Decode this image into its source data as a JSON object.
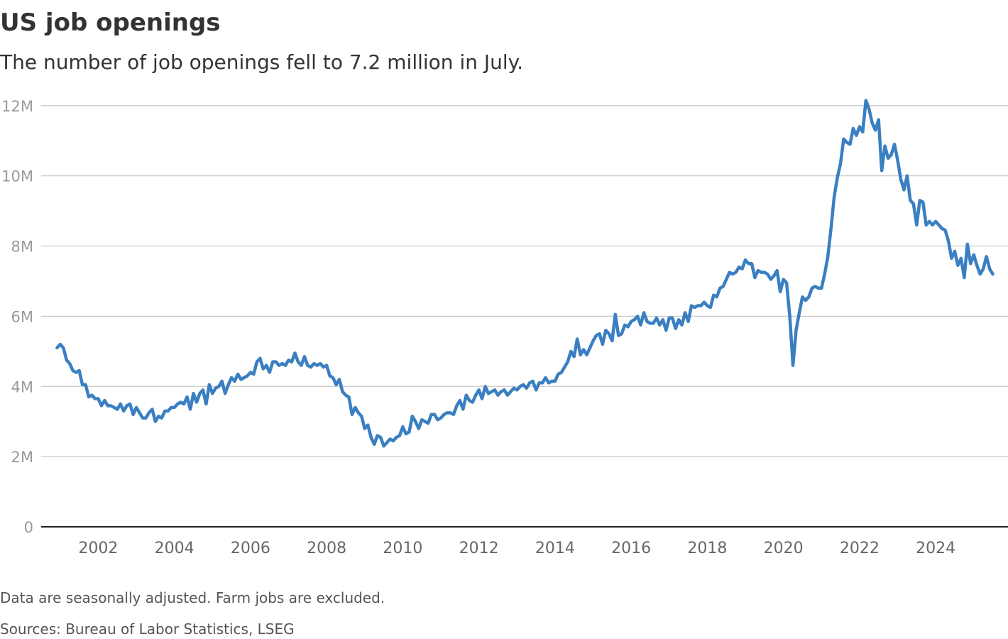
{
  "chart_data": {
    "type": "line",
    "title": "US job openings",
    "subtitle": "The number of job openings fell to 7.2 million in July.",
    "notes": [
      "Data are seasonally adjusted. Farm jobs are excluded.",
      "Sources: Bureau of Labor Statistics, LSEG"
    ],
    "color": "#3a7fc1",
    "grid": true,
    "xlim": [
      2000.5,
      2025.9
    ],
    "xticks": [
      2002,
      2004,
      2006,
      2008,
      2010,
      2012,
      2014,
      2016,
      2018,
      2020,
      2022,
      2024
    ],
    "ylim": [
      0,
      12.4
    ],
    "yticks": [
      0,
      {
        "value": 2,
        "label": "2M"
      },
      {
        "value": 4,
        "label": "4M"
      },
      {
        "value": 6,
        "label": "6M"
      },
      {
        "value": 8,
        "label": "8M"
      },
      {
        "value": 10,
        "label": "10M"
      },
      {
        "value": 12,
        "label": "12M"
      }
    ],
    "x": [
      2000.917,
      2001,
      2001.083,
      2001.167,
      2001.25,
      2001.333,
      2001.417,
      2001.5,
      2001.583,
      2001.667,
      2001.75,
      2001.833,
      2001.917,
      2002,
      2002.083,
      2002.167,
      2002.25,
      2002.333,
      2002.417,
      2002.5,
      2002.583,
      2002.667,
      2002.75,
      2002.833,
      2002.917,
      2003,
      2003.083,
      2003.167,
      2003.25,
      2003.333,
      2003.417,
      2003.5,
      2003.583,
      2003.667,
      2003.75,
      2003.833,
      2003.917,
      2004,
      2004.083,
      2004.167,
      2004.25,
      2004.333,
      2004.417,
      2004.5,
      2004.583,
      2004.667,
      2004.75,
      2004.833,
      2004.917,
      2005,
      2005.083,
      2005.167,
      2005.25,
      2005.333,
      2005.417,
      2005.5,
      2005.583,
      2005.667,
      2005.75,
      2005.833,
      2005.917,
      2006,
      2006.083,
      2006.167,
      2006.25,
      2006.333,
      2006.417,
      2006.5,
      2006.583,
      2006.667,
      2006.75,
      2006.833,
      2006.917,
      2007,
      2007.083,
      2007.167,
      2007.25,
      2007.333,
      2007.417,
      2007.5,
      2007.583,
      2007.667,
      2007.75,
      2007.833,
      2007.917,
      2008,
      2008.083,
      2008.167,
      2008.25,
      2008.333,
      2008.417,
      2008.5,
      2008.583,
      2008.667,
      2008.75,
      2008.833,
      2008.917,
      2009,
      2009.083,
      2009.167,
      2009.25,
      2009.333,
      2009.417,
      2009.5,
      2009.583,
      2009.667,
      2009.75,
      2009.833,
      2009.917,
      2010,
      2010.083,
      2010.167,
      2010.25,
      2010.333,
      2010.417,
      2010.5,
      2010.583,
      2010.667,
      2010.75,
      2010.833,
      2010.917,
      2011,
      2011.083,
      2011.167,
      2011.25,
      2011.333,
      2011.417,
      2011.5,
      2011.583,
      2011.667,
      2011.75,
      2011.833,
      2011.917,
      2012,
      2012.083,
      2012.167,
      2012.25,
      2012.333,
      2012.417,
      2012.5,
      2012.583,
      2012.667,
      2012.75,
      2012.833,
      2012.917,
      2013,
      2013.083,
      2013.167,
      2013.25,
      2013.333,
      2013.417,
      2013.5,
      2013.583,
      2013.667,
      2013.75,
      2013.833,
      2013.917,
      2014,
      2014.083,
      2014.167,
      2014.25,
      2014.333,
      2014.417,
      2014.5,
      2014.583,
      2014.667,
      2014.75,
      2014.833,
      2014.917,
      2015,
      2015.083,
      2015.167,
      2015.25,
      2015.333,
      2015.417,
      2015.5,
      2015.583,
      2015.667,
      2015.75,
      2015.833,
      2015.917,
      2016,
      2016.083,
      2016.167,
      2016.25,
      2016.333,
      2016.417,
      2016.5,
      2016.583,
      2016.667,
      2016.75,
      2016.833,
      2016.917,
      2017,
      2017.083,
      2017.167,
      2017.25,
      2017.333,
      2017.417,
      2017.5,
      2017.583,
      2017.667,
      2017.75,
      2017.833,
      2017.917,
      2018,
      2018.083,
      2018.167,
      2018.25,
      2018.333,
      2018.417,
      2018.5,
      2018.583,
      2018.667,
      2018.75,
      2018.833,
      2018.917,
      2019,
      2019.083,
      2019.167,
      2019.25,
      2019.333,
      2019.417,
      2019.5,
      2019.583,
      2019.667,
      2019.75,
      2019.833,
      2019.917,
      2020,
      2020.083,
      2020.167,
      2020.25,
      2020.333,
      2020.417,
      2020.5,
      2020.583,
      2020.667,
      2020.75,
      2020.833,
      2020.917,
      2021,
      2021.083,
      2021.167,
      2021.25,
      2021.333,
      2021.417,
      2021.5,
      2021.583,
      2021.667,
      2021.75,
      2021.833,
      2021.917,
      2022,
      2022.083,
      2022.167,
      2022.25,
      2022.333,
      2022.417,
      2022.5,
      2022.583,
      2022.667,
      2022.75,
      2022.833,
      2022.917,
      2023,
      2023.083,
      2023.167,
      2023.25,
      2023.333,
      2023.417,
      2023.5,
      2023.583,
      2023.667,
      2023.75,
      2023.833,
      2023.917,
      2024,
      2024.083,
      2024.167,
      2024.25,
      2024.333,
      2024.417,
      2024.5,
      2024.583,
      2024.667,
      2024.75,
      2024.833,
      2024.917,
      2025,
      2025.083,
      2025.167,
      2025.25,
      2025.333,
      2025.417,
      2025.5
    ],
    "values": [
      5.1,
      5.2,
      5.1,
      4.75,
      4.65,
      4.45,
      4.4,
      4.45,
      4.05,
      4.05,
      3.7,
      3.75,
      3.65,
      3.65,
      3.45,
      3.6,
      3.45,
      3.45,
      3.4,
      3.35,
      3.5,
      3.3,
      3.45,
      3.5,
      3.2,
      3.4,
      3.25,
      3.1,
      3.1,
      3.25,
      3.35,
      3.0,
      3.15,
      3.1,
      3.3,
      3.3,
      3.4,
      3.4,
      3.5,
      3.55,
      3.5,
      3.7,
      3.35,
      3.8,
      3.55,
      3.8,
      3.9,
      3.5,
      4.05,
      3.8,
      3.95,
      4.0,
      4.15,
      3.8,
      4.05,
      4.25,
      4.15,
      4.35,
      4.2,
      4.25,
      4.3,
      4.4,
      4.35,
      4.7,
      4.8,
      4.5,
      4.6,
      4.4,
      4.7,
      4.7,
      4.6,
      4.65,
      4.6,
      4.75,
      4.7,
      4.95,
      4.7,
      4.6,
      4.85,
      4.6,
      4.55,
      4.65,
      4.6,
      4.65,
      4.55,
      4.6,
      4.3,
      4.25,
      4.05,
      4.2,
      3.85,
      3.75,
      3.7,
      3.2,
      3.4,
      3.25,
      3.15,
      2.8,
      2.9,
      2.55,
      2.35,
      2.6,
      2.55,
      2.3,
      2.4,
      2.5,
      2.45,
      2.55,
      2.6,
      2.85,
      2.65,
      2.7,
      3.15,
      3.0,
      2.8,
      3.05,
      3.0,
      2.95,
      3.2,
      3.2,
      3.05,
      3.1,
      3.2,
      3.25,
      3.25,
      3.2,
      3.45,
      3.6,
      3.35,
      3.75,
      3.6,
      3.55,
      3.75,
      3.9,
      3.65,
      4.0,
      3.8,
      3.85,
      3.9,
      3.75,
      3.85,
      3.9,
      3.75,
      3.85,
      3.95,
      3.9,
      4.0,
      4.05,
      3.95,
      4.1,
      4.15,
      3.9,
      4.1,
      4.1,
      4.25,
      4.1,
      4.15,
      4.15,
      4.35,
      4.4,
      4.55,
      4.7,
      5.0,
      4.85,
      5.35,
      4.9,
      5.05,
      4.9,
      5.1,
      5.3,
      5.45,
      5.5,
      5.2,
      5.6,
      5.5,
      5.3,
      6.05,
      5.45,
      5.5,
      5.75,
      5.7,
      5.85,
      5.9,
      6.0,
      5.75,
      6.1,
      5.85,
      5.8,
      5.8,
      5.95,
      5.75,
      5.9,
      5.6,
      5.95,
      5.95,
      5.65,
      5.9,
      5.75,
      6.1,
      5.85,
      6.3,
      6.25,
      6.3,
      6.3,
      6.4,
      6.3,
      6.25,
      6.6,
      6.55,
      6.8,
      6.85,
      7.05,
      7.25,
      7.2,
      7.25,
      7.4,
      7.35,
      7.6,
      7.5,
      7.5,
      7.1,
      7.3,
      7.25,
      7.25,
      7.2,
      7.05,
      7.15,
      7.3,
      6.7,
      7.05,
      6.95,
      6.0,
      4.6,
      5.6,
      6.1,
      6.55,
      6.45,
      6.55,
      6.8,
      6.85,
      6.8,
      6.8,
      7.2,
      7.7,
      8.5,
      9.4,
      9.95,
      10.35,
      11.05,
      10.95,
      10.9,
      11.35,
      11.15,
      11.4,
      11.25,
      12.15,
      11.9,
      11.5,
      11.3,
      11.6,
      10.15,
      10.85,
      10.5,
      10.6,
      10.9,
      10.45,
      9.9,
      9.6,
      10.0,
      9.3,
      9.2,
      8.6,
      9.3,
      9.25,
      8.6,
      8.7,
      8.6,
      8.7,
      8.6,
      8.5,
      8.45,
      8.15,
      7.65,
      7.85,
      7.45,
      7.65,
      7.1,
      8.05,
      7.5,
      7.75,
      7.45,
      7.2,
      7.35,
      7.7,
      7.35,
      7.2
    ]
  }
}
